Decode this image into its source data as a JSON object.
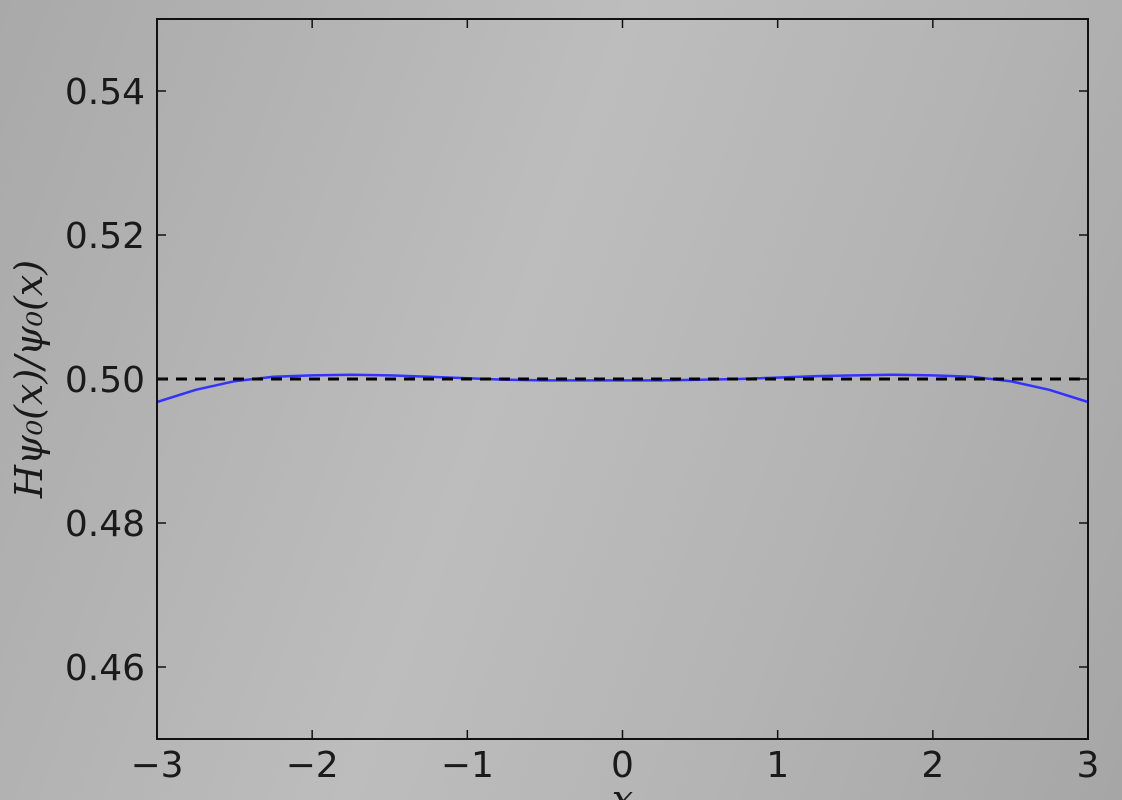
{
  "chart_data": {
    "type": "line",
    "title": "",
    "xlabel": "x",
    "ylabel": "Hψ₀(x)/ψ₀(x)",
    "xlim": [
      -3,
      3
    ],
    "ylim": [
      0.45,
      0.55
    ],
    "xticks": [
      -3,
      -2,
      -1,
      0,
      1,
      2,
      3
    ],
    "xtick_labels": [
      "−3",
      "−2",
      "−1",
      "0",
      "1",
      "2",
      "3"
    ],
    "yticks": [
      0.46,
      0.48,
      0.5,
      0.52,
      0.54
    ],
    "ytick_labels": [
      "0.46",
      "0.48",
      "0.50",
      "0.52",
      "0.54"
    ],
    "grid": false,
    "series": [
      {
        "color": "#3333ff",
        "style": "solid",
        "x": [
          -3.0,
          -2.75,
          -2.5,
          -2.25,
          -2.0,
          -1.75,
          -1.5,
          -1.25,
          -1.0,
          -0.75,
          -0.5,
          -0.25,
          0.0,
          0.25,
          0.5,
          0.75,
          1.0,
          1.25,
          1.5,
          1.75,
          2.0,
          2.25,
          2.5,
          2.75,
          3.0
        ],
        "y": [
          0.4968,
          0.4985,
          0.4997,
          0.5003,
          0.5005,
          0.5006,
          0.5005,
          0.5003,
          0.5001,
          0.4999,
          0.4998,
          0.4998,
          0.4998,
          0.4998,
          0.4999,
          0.5,
          0.5002,
          0.5004,
          0.5005,
          0.5006,
          0.5005,
          0.5003,
          0.4997,
          0.4985,
          0.4968
        ]
      },
      {
        "color": "#000000",
        "style": "dashed",
        "x": [
          -3.0,
          3.0
        ],
        "y": [
          0.5,
          0.5
        ]
      }
    ]
  }
}
